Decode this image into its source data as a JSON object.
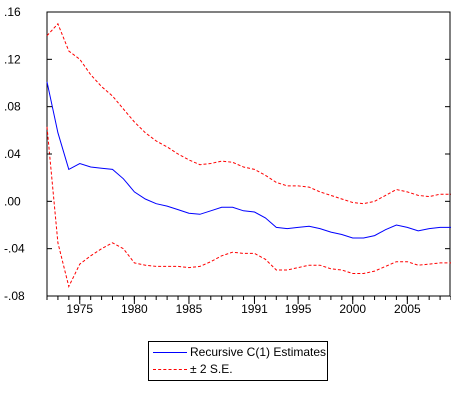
{
  "chart_data": {
    "type": "line",
    "title": "",
    "xlabel": "",
    "ylabel": "",
    "xlim": [
      1972,
      2009
    ],
    "ylim": [
      -0.08,
      0.16
    ],
    "yticks": [
      -0.08,
      -0.04,
      0.0,
      0.04,
      0.08,
      0.12,
      0.16
    ],
    "ytick_labels": [
      "-.08",
      "-.04",
      ".00",
      ".04",
      ".08",
      ".12",
      ".16"
    ],
    "xticks": [
      1975,
      1980,
      1985,
      1991,
      1995,
      2000,
      2005
    ],
    "xtick_labels": [
      "1975",
      "1980",
      "1985",
      "1991",
      "1995",
      "2000",
      "2005"
    ],
    "grid": false,
    "legend_position": "bottom-center",
    "series": [
      {
        "name": "Recursive C(1) Estimates",
        "color": "#0000ff",
        "style": "solid",
        "x": [
          1972,
          1973,
          1974,
          1975,
          1976,
          1977,
          1978,
          1979,
          1980,
          1981,
          1982,
          1983,
          1984,
          1985,
          1986,
          1987,
          1988,
          1989,
          1990,
          1991,
          1992,
          1993,
          1994,
          1995,
          1996,
          1997,
          1998,
          1999,
          2000,
          2001,
          2002,
          2003,
          2004,
          2005,
          2006,
          2007,
          2008,
          2009
        ],
        "values": [
          0.101,
          0.058,
          0.027,
          0.032,
          0.029,
          0.028,
          0.027,
          0.019,
          0.008,
          0.002,
          -0.002,
          -0.004,
          -0.007,
          -0.01,
          -0.011,
          -0.008,
          -0.005,
          -0.005,
          -0.008,
          -0.009,
          -0.014,
          -0.022,
          -0.023,
          -0.022,
          -0.021,
          -0.023,
          -0.026,
          -0.028,
          -0.031,
          -0.031,
          -0.029,
          -0.024,
          -0.02,
          -0.022,
          -0.025,
          -0.023,
          -0.022,
          -0.022
        ]
      },
      {
        "name": "± 2 S.E.",
        "color": "#ff0000",
        "style": "dashed",
        "x": [
          1972,
          1973,
          1974,
          1975,
          1976,
          1977,
          1978,
          1979,
          1980,
          1981,
          1982,
          1983,
          1984,
          1985,
          1986,
          1987,
          1988,
          1989,
          1990,
          1991,
          1992,
          1993,
          1994,
          1995,
          1996,
          1997,
          1998,
          1999,
          2000,
          2001,
          2002,
          2003,
          2004,
          2005,
          2006,
          2007,
          2008,
          2009
        ],
        "values": [
          0.14,
          0.15,
          0.127,
          0.12,
          0.107,
          0.097,
          0.089,
          0.078,
          0.067,
          0.058,
          0.051,
          0.046,
          0.04,
          0.035,
          0.031,
          0.032,
          0.034,
          0.033,
          0.029,
          0.027,
          0.022,
          0.016,
          0.013,
          0.013,
          0.012,
          0.008,
          0.005,
          0.002,
          -0.001,
          -0.002,
          0.0,
          0.005,
          0.01,
          0.008,
          0.005,
          0.004,
          0.006,
          0.006
        ]
      },
      {
        "name": "",
        "color": "#ff0000",
        "style": "dashed",
        "x": [
          1972,
          1973,
          1974,
          1975,
          1976,
          1977,
          1978,
          1979,
          1980,
          1981,
          1982,
          1983,
          1984,
          1985,
          1986,
          1987,
          1988,
          1989,
          1990,
          1991,
          1992,
          1993,
          1994,
          1995,
          1996,
          1997,
          1998,
          1999,
          2000,
          2001,
          2002,
          2003,
          2004,
          2005,
          2006,
          2007,
          2008,
          2009
        ],
        "values": [
          0.063,
          -0.035,
          -0.072,
          -0.053,
          -0.046,
          -0.04,
          -0.035,
          -0.04,
          -0.052,
          -0.054,
          -0.055,
          -0.055,
          -0.055,
          -0.056,
          -0.055,
          -0.051,
          -0.046,
          -0.043,
          -0.044,
          -0.044,
          -0.049,
          -0.058,
          -0.058,
          -0.056,
          -0.054,
          -0.054,
          -0.057,
          -0.058,
          -0.061,
          -0.061,
          -0.059,
          -0.055,
          -0.051,
          -0.051,
          -0.054,
          -0.053,
          -0.052,
          -0.052
        ]
      }
    ],
    "legend": [
      {
        "label": "Recursive C(1) Estimates",
        "color": "#0000ff",
        "style": "solid"
      },
      {
        "label": "± 2 S.E.",
        "color": "#ff0000",
        "style": "dashed"
      }
    ]
  }
}
